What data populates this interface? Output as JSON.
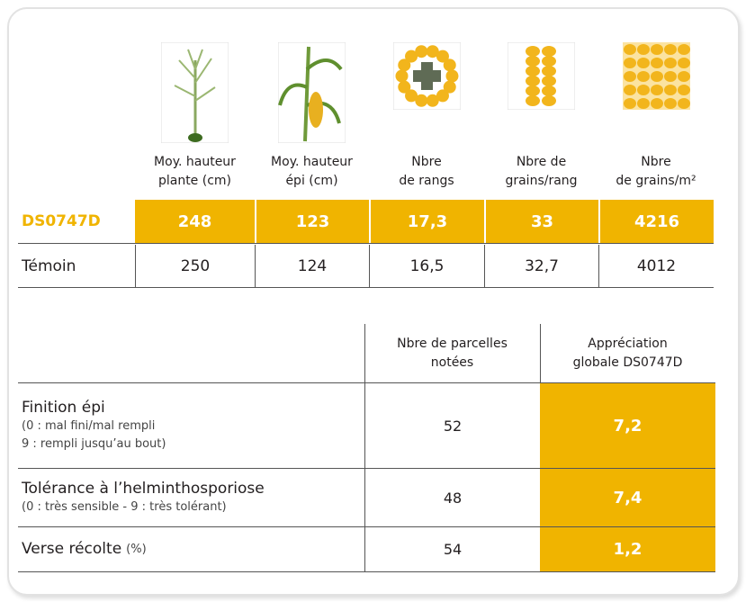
{
  "top_table": {
    "columns": [
      "Moy. hauteur\nplante (cm)",
      "Moy. hauteur\népi (cm)",
      "Nbre\nde rangs",
      "Nbre de\ngrains/rang",
      "Nbre\nde grains/m²"
    ],
    "rows": [
      {
        "label": "DS0747D",
        "values": [
          "248",
          "123",
          "17,3",
          "33",
          "4216"
        ]
      },
      {
        "label": "Témoin",
        "values": [
          "250",
          "124",
          "16,5",
          "32,7",
          "4012"
        ]
      }
    ]
  },
  "bottom_table": {
    "headers": [
      "Nbre de parcelles\nnotées",
      "Appréciation\nglobale DS0747D"
    ],
    "rows": [
      {
        "title": "Finition épi",
        "note": "(0 : mal fini/mal rempli\n9 : rempli jusqu’au bout)",
        "count": "52",
        "score": "7,2"
      },
      {
        "title": "Tolérance à l’helminthosporiose",
        "note": "(0 : très sensible - 9 : très tolérant)",
        "count": "48",
        "score": "7,4"
      },
      {
        "title": "Verse récolte",
        "note": "(%)",
        "count": "54",
        "score": "1,2"
      }
    ]
  }
}
